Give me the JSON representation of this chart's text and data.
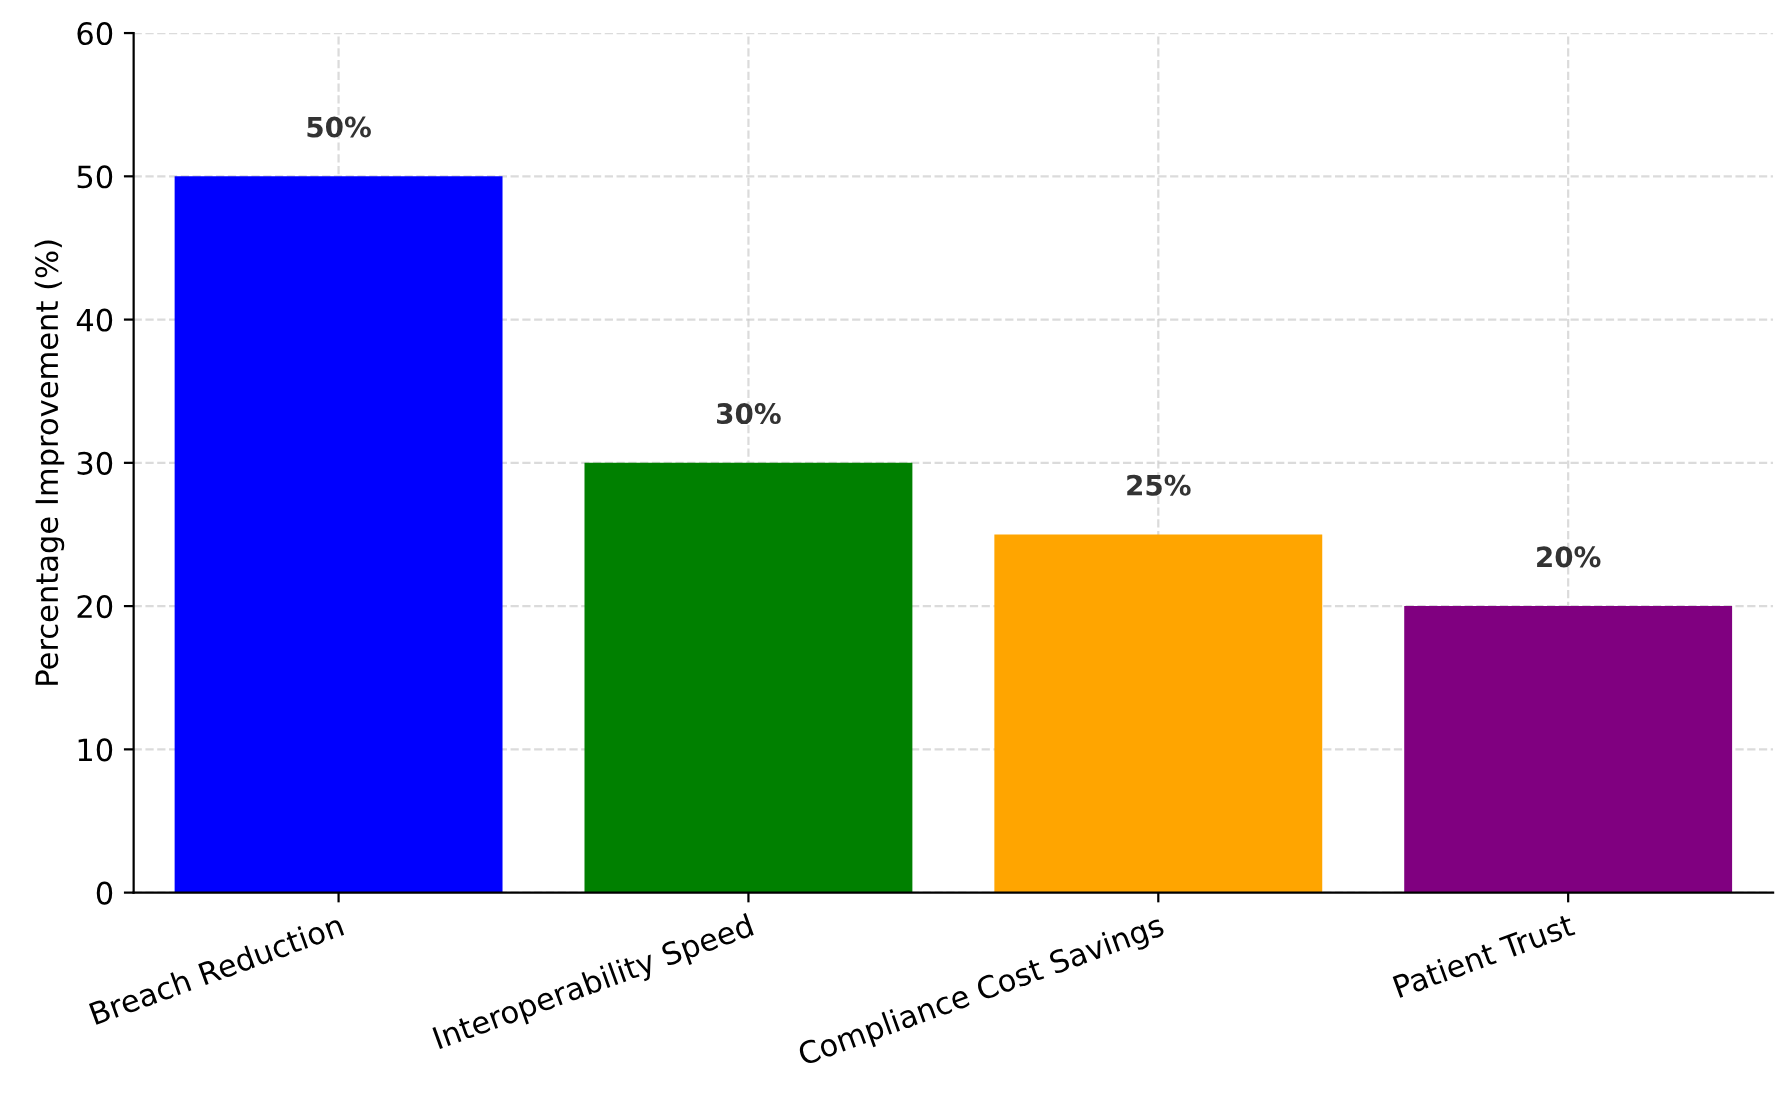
{
  "chart_data": {
    "type": "bar",
    "ylabel": "Percentage Improvement (%)",
    "categories": [
      "Breach Reduction",
      "Interoperability Speed",
      "Compliance Cost Savings",
      "Patient Trust"
    ],
    "values": [
      50,
      30,
      25,
      20
    ],
    "colors": [
      "#0000ff",
      "#008000",
      "#ffa500",
      "#800080"
    ],
    "value_labels": [
      "50%",
      "30%",
      "25%",
      "20%"
    ],
    "ylim": [
      0,
      60
    ],
    "yticks": [
      0,
      10,
      20,
      30,
      40,
      50,
      60
    ],
    "grid": true,
    "legend": false
  }
}
